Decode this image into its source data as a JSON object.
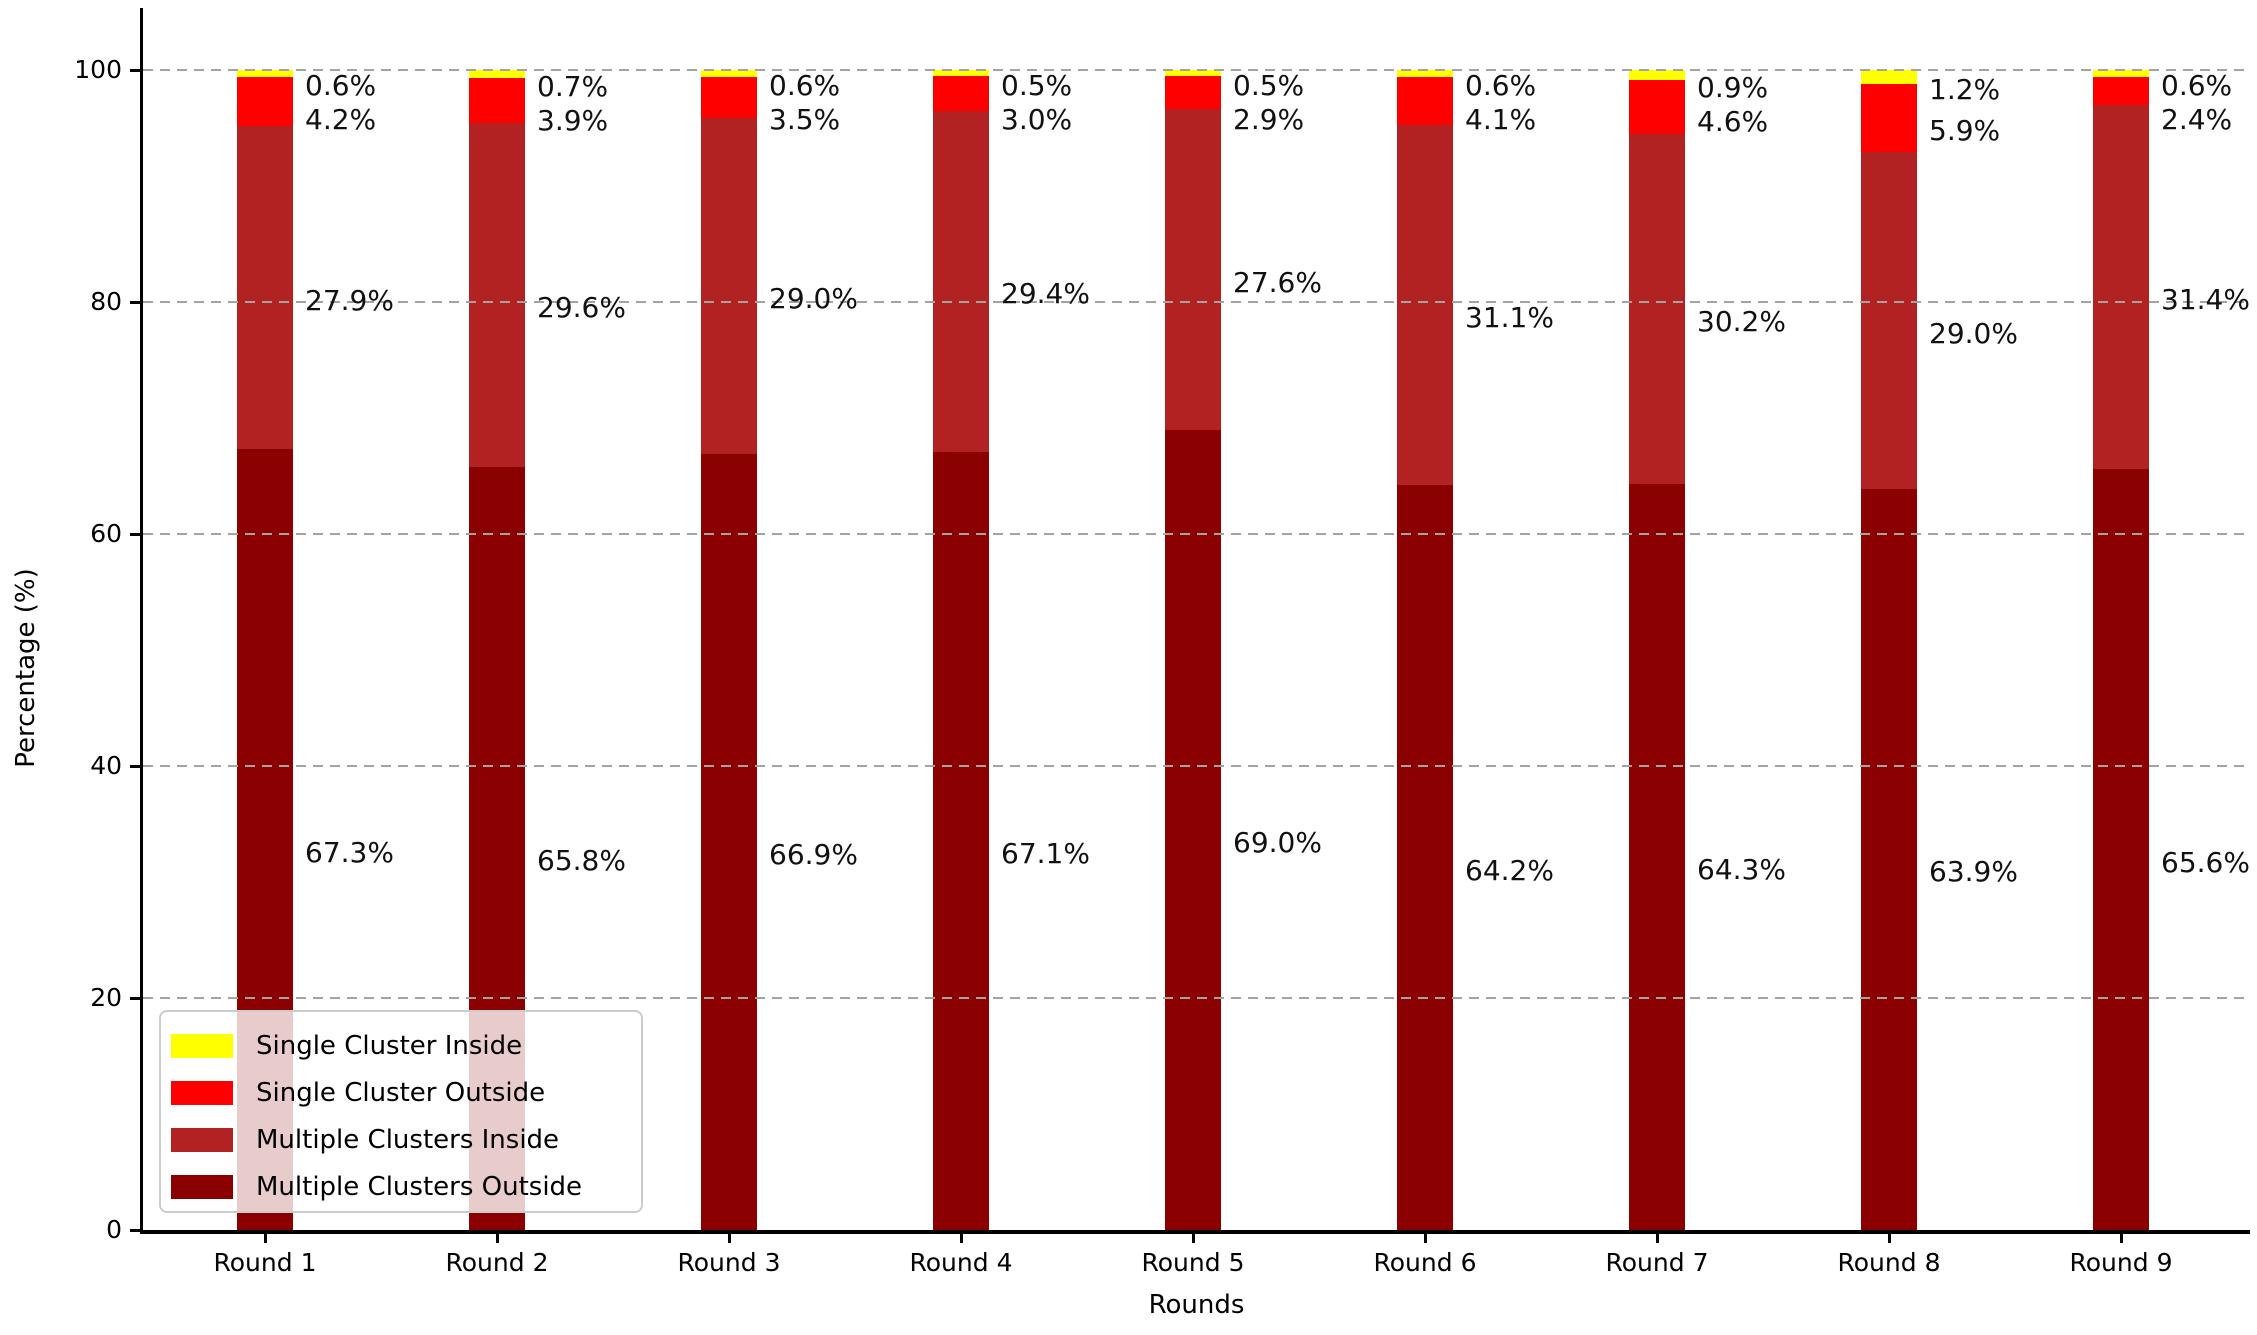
{
  "chart_data": {
    "type": "bar",
    "stacked": true,
    "title": "",
    "xlabel": "Rounds",
    "ylabel": "Percentage (%)",
    "ylim": [
      0,
      100
    ],
    "y_ticks": [
      0,
      20,
      40,
      60,
      80,
      100
    ],
    "grid": "horizontal-dashed",
    "legend_position": "lower-left",
    "label_format": "{value}%",
    "categories": [
      "Round 1",
      "Round 2",
      "Round 3",
      "Round 4",
      "Round 5",
      "Round 6",
      "Round 7",
      "Round 8",
      "Round 9"
    ],
    "series": [
      {
        "name": "Multiple Clusters Outside",
        "color": "#8B0000",
        "values": [
          67.3,
          65.8,
          66.9,
          67.1,
          69.0,
          64.2,
          64.3,
          63.9,
          65.6
        ]
      },
      {
        "name": "Multiple Clusters Inside",
        "color": "#B22222",
        "values": [
          27.9,
          29.6,
          29.0,
          29.4,
          27.6,
          31.1,
          30.2,
          29.0,
          31.4
        ]
      },
      {
        "name": "Single Cluster Outside",
        "color": "#FF0000",
        "values": [
          4.2,
          3.9,
          3.5,
          3.0,
          2.9,
          4.1,
          4.6,
          5.9,
          2.4
        ]
      },
      {
        "name": "Single Cluster Inside",
        "color": "#FFFF00",
        "values": [
          0.6,
          0.7,
          0.6,
          0.5,
          0.5,
          0.6,
          0.9,
          1.2,
          0.6
        ]
      }
    ]
  }
}
